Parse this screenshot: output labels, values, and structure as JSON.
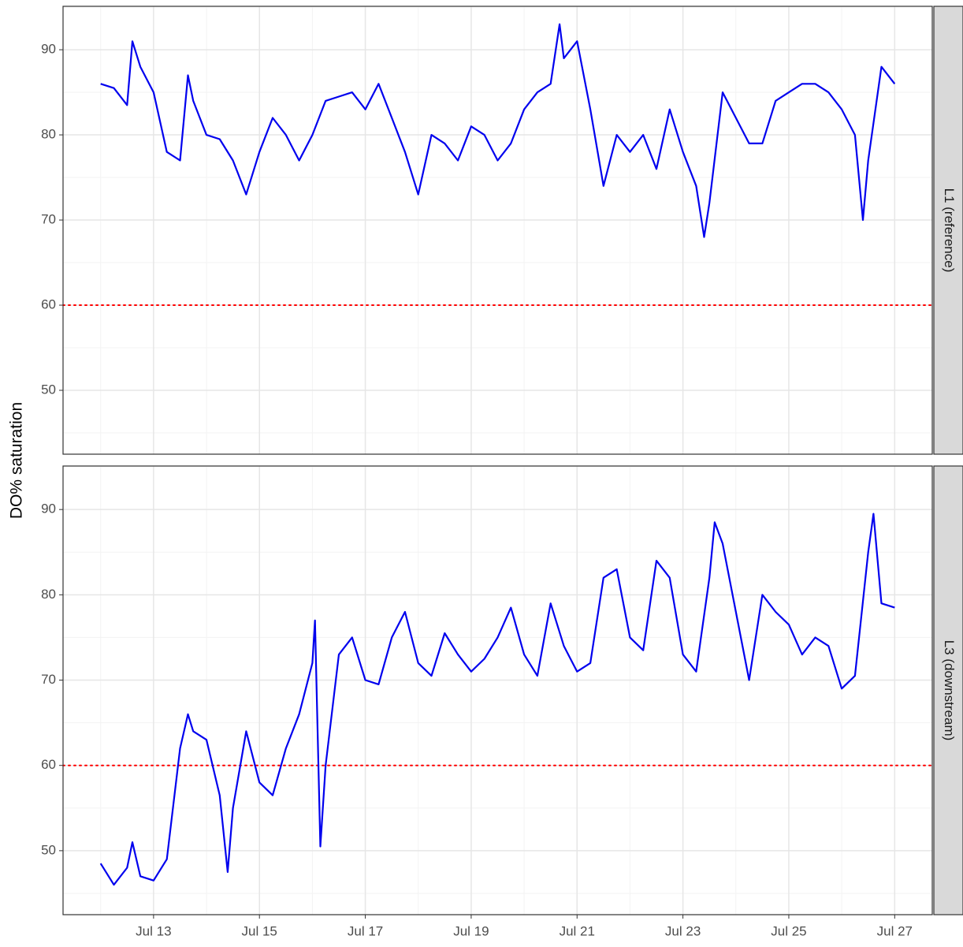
{
  "chart_data": [
    {
      "type": "line",
      "title": "L1 (reference)",
      "ylabel": "DO% saturation",
      "xlim": [
        11.29,
        27.71
      ],
      "xticks": [
        13,
        15,
        17,
        19,
        21,
        23,
        25,
        27
      ],
      "ylim": [
        42.5,
        95.1
      ],
      "yticks": [
        50,
        60,
        70,
        80,
        90
      ],
      "grid": true,
      "hline": 60,
      "hline_color": "#ff0000",
      "series": [
        {
          "name": "L1",
          "color": "#0000ee",
          "x": [
            12.0,
            12.25,
            12.5,
            12.6,
            12.75,
            13.0,
            13.25,
            13.5,
            13.65,
            13.75,
            14.0,
            14.25,
            14.5,
            14.75,
            15.0,
            15.25,
            15.5,
            15.75,
            16.0,
            16.25,
            16.5,
            16.75,
            17.0,
            17.25,
            17.5,
            17.75,
            18.0,
            18.25,
            18.5,
            18.75,
            19.0,
            19.25,
            19.5,
            19.75,
            20.0,
            20.25,
            20.5,
            20.67,
            20.75,
            21.0,
            21.25,
            21.5,
            21.75,
            22.0,
            22.25,
            22.5,
            22.75,
            23.0,
            23.25,
            23.4,
            23.5,
            23.75,
            24.0,
            24.25,
            24.5,
            24.75,
            25.0,
            25.25,
            25.5,
            25.75,
            26.0,
            26.25,
            26.4,
            26.5,
            26.75,
            27.0
          ],
          "values": [
            86,
            85.5,
            83.5,
            91,
            88,
            85,
            78,
            77,
            87,
            84,
            80,
            79.5,
            77,
            73,
            78,
            82,
            80,
            77,
            80,
            84,
            84.5,
            85,
            83,
            86,
            82,
            78,
            73,
            80,
            79,
            77,
            81,
            80,
            77,
            79,
            83,
            85,
            86,
            93,
            89,
            91,
            83,
            74,
            80,
            78,
            80,
            76,
            83,
            78,
            74,
            68,
            72,
            85,
            82,
            79,
            79,
            84,
            85,
            86,
            86,
            85,
            83,
            80,
            70,
            77,
            88,
            86
          ]
        }
      ]
    },
    {
      "type": "line",
      "title": "L3 (downstream)",
      "xlim": [
        11.29,
        27.71
      ],
      "xticks": [
        {
          "value": 13,
          "label": "Jul 13"
        },
        {
          "value": 15,
          "label": "Jul 15"
        },
        {
          "value": 17,
          "label": "Jul 17"
        },
        {
          "value": 19,
          "label": "Jul 19"
        },
        {
          "value": 21,
          "label": "Jul 21"
        },
        {
          "value": 23,
          "label": "Jul 23"
        },
        {
          "value": 25,
          "label": "Jul 25"
        },
        {
          "value": 27,
          "label": "Jul 27"
        }
      ],
      "ylim": [
        42.5,
        95.1
      ],
      "yticks": [
        50,
        60,
        70,
        80,
        90
      ],
      "grid": true,
      "hline": 60,
      "hline_color": "#ff0000",
      "series": [
        {
          "name": "L3",
          "color": "#0000ee",
          "x": [
            12.0,
            12.25,
            12.5,
            12.6,
            12.75,
            13.0,
            13.25,
            13.5,
            13.65,
            13.75,
            14.0,
            14.25,
            14.4,
            14.5,
            14.75,
            15.0,
            15.25,
            15.5,
            15.75,
            16.0,
            16.05,
            16.15,
            16.25,
            16.5,
            16.75,
            17.0,
            17.25,
            17.5,
            17.75,
            18.0,
            18.25,
            18.5,
            18.75,
            19.0,
            19.25,
            19.5,
            19.75,
            20.0,
            20.25,
            20.5,
            20.75,
            21.0,
            21.25,
            21.5,
            21.75,
            22.0,
            22.25,
            22.5,
            22.75,
            23.0,
            23.25,
            23.5,
            23.6,
            23.75,
            24.0,
            24.25,
            24.5,
            24.75,
            25.0,
            25.25,
            25.5,
            25.75,
            26.0,
            26.25,
            26.5,
            26.6,
            26.75,
            27.0
          ],
          "values": [
            48.5,
            46,
            48,
            51,
            47,
            46.5,
            49,
            62,
            66,
            64,
            63,
            56.5,
            47.5,
            55,
            64,
            58,
            56.5,
            62,
            66,
            72,
            77,
            50.5,
            60,
            73,
            75,
            70,
            69.5,
            75,
            78,
            72,
            70.5,
            75.5,
            73,
            71,
            72.5,
            75,
            78.5,
            73,
            70.5,
            79,
            74,
            71,
            72,
            82,
            83,
            75,
            73.5,
            84,
            82,
            73,
            71,
            82,
            88.5,
            86,
            78,
            70,
            80,
            78,
            76.5,
            73,
            75,
            74,
            69,
            70.5,
            85,
            89.5,
            79,
            78.5
          ]
        }
      ]
    }
  ]
}
